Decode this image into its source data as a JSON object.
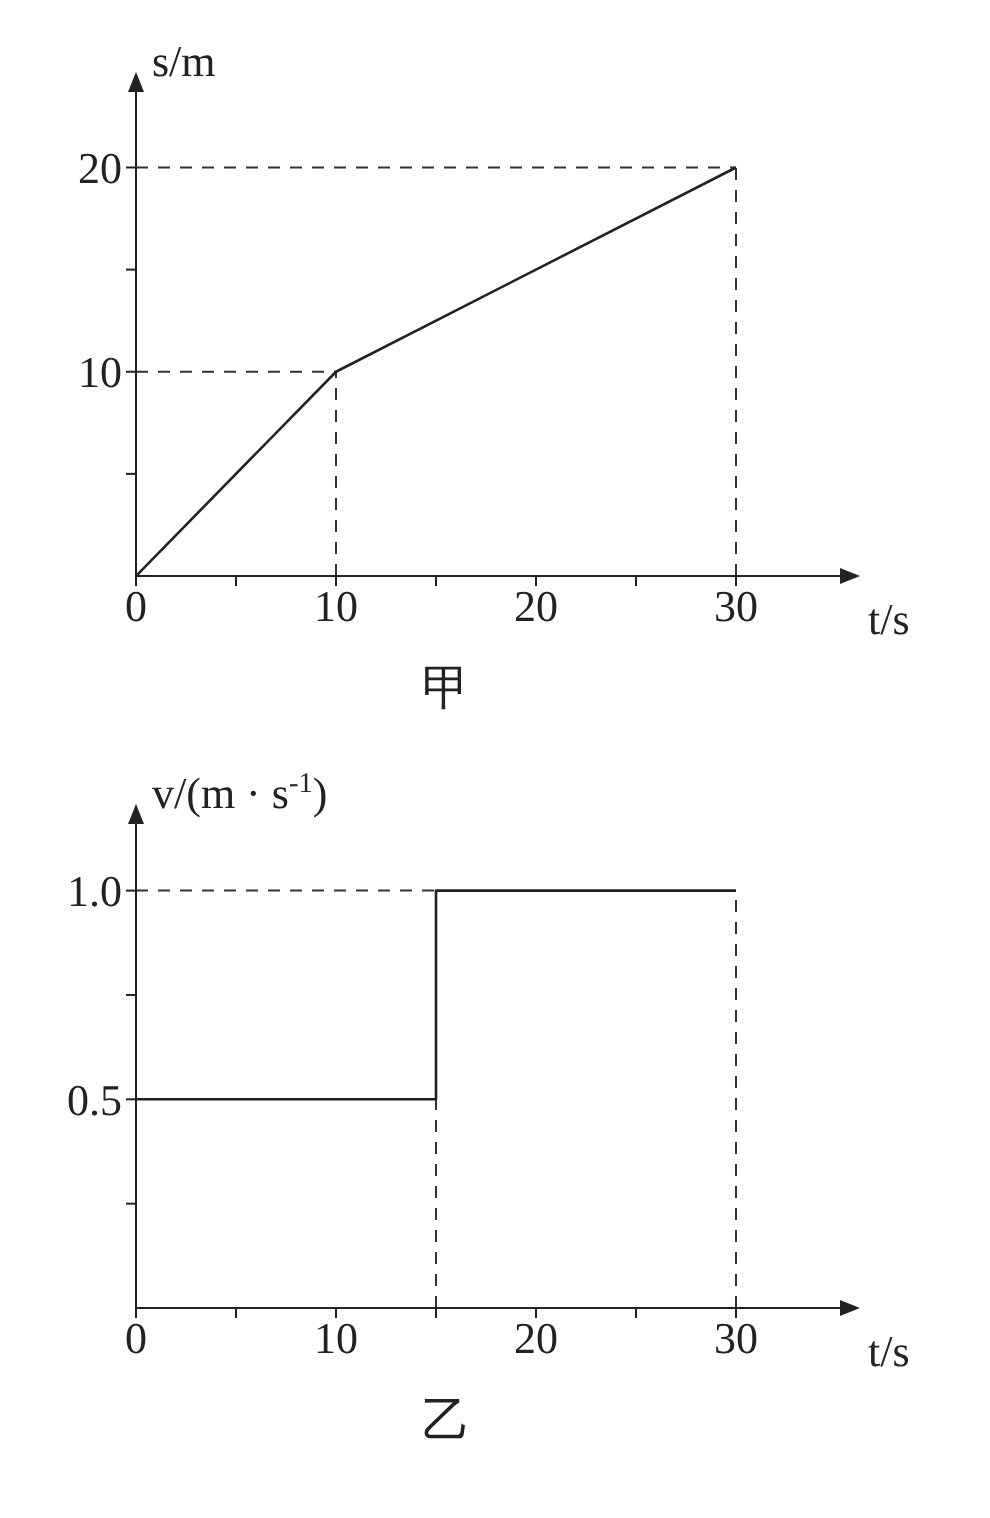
{
  "chart_data": [
    {
      "type": "line",
      "title": "甲",
      "xlabel": "t/s",
      "ylabel": "s/m",
      "x": [
        0,
        10,
        30
      ],
      "values": [
        0,
        10,
        20
      ],
      "color": "#222222",
      "marker": "none",
      "xlim": [
        0,
        35
      ],
      "ylim": [
        0,
        23.5
      ],
      "xticks": [
        0,
        {
          "value": 5,
          "label": null
        },
        10,
        {
          "value": 15,
          "label": null
        },
        20,
        {
          "value": 25,
          "label": null
        },
        30
      ],
      "yticks": [
        {
          "value": 5,
          "label": null
        },
        10,
        {
          "value": 15,
          "label": null
        },
        20
      ],
      "ref_lines": [
        {
          "axis": "y",
          "value": 10,
          "line_style": "dashed",
          "color": "#333333"
        },
        {
          "axis": "y",
          "value": 20,
          "line_style": "dashed",
          "color": "#333333"
        },
        {
          "axis": "x",
          "value": 10,
          "line_style": "dashed",
          "color": "#333333"
        },
        {
          "axis": "x",
          "value": 30,
          "line_style": "dashed",
          "color": "#333333"
        }
      ]
    },
    {
      "type": "step",
      "title": "乙",
      "xlabel": "t/s",
      "ylabel": "v/(m · s$^{-1}$)",
      "x": [
        0,
        15,
        30
      ],
      "values": [
        0.5,
        1.0,
        1.0
      ],
      "color": "#222222",
      "marker": "none",
      "xlim": [
        0,
        35
      ],
      "ylim": [
        0,
        1.15
      ],
      "xticks": [
        0,
        {
          "value": 5,
          "label": null
        },
        10,
        {
          "value": 15,
          "label": null
        },
        20,
        {
          "value": 25,
          "label": null
        },
        30
      ],
      "yticks": [
        {
          "value": 0.25,
          "label": null
        },
        0.5,
        {
          "value": 0.75,
          "label": null
        },
        {
          "value": 1,
          "label": "1.0"
        }
      ],
      "ref_lines": [
        {
          "axis": "y",
          "value": 1,
          "line_style": "dashed",
          "color": "#333333"
        },
        {
          "axis": "x",
          "value": 15,
          "line_style": "dashed",
          "color": "#333333"
        },
        {
          "axis": "x",
          "value": 30,
          "line_style": "dashed",
          "color": "#333333"
        }
      ]
    }
  ]
}
